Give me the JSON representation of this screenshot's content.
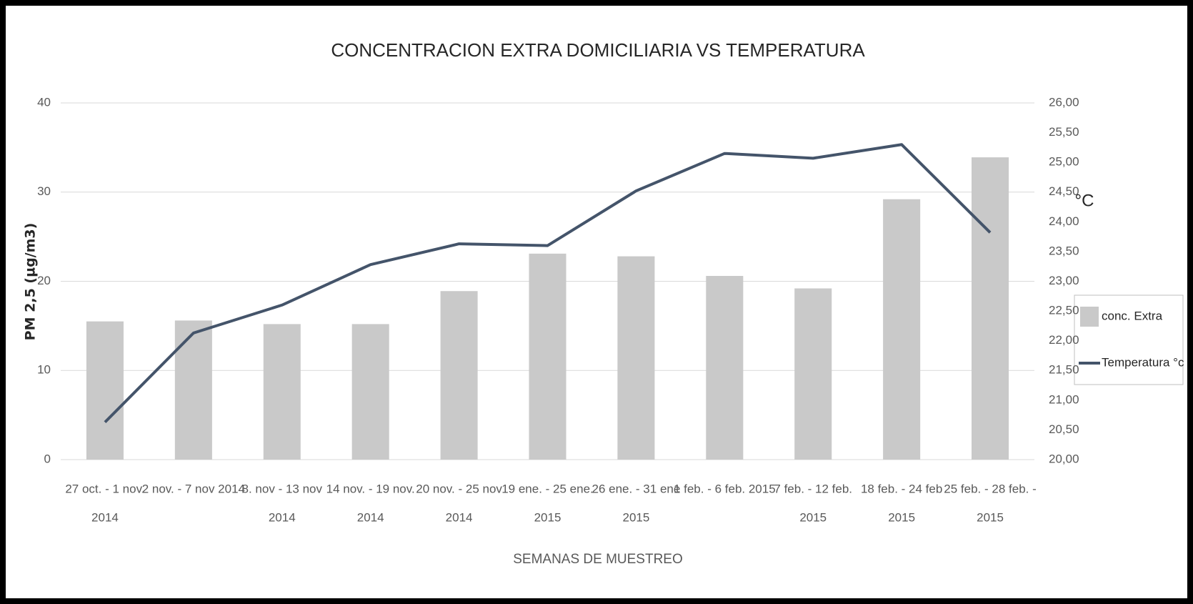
{
  "chart_data": {
    "type": "bar-line",
    "title": "CONCENTRACION EXTRA DOMICILIARIA VS TEMPERATURA",
    "x_label": "SEMANAS DE MUESTREO",
    "y_label": "PM 2,5 (µg/m3)",
    "y2_label": "°C",
    "categories": [
      [
        "27 oct. - 1 nov.",
        "2014"
      ],
      [
        "2 nov. - 7 nov 2014"
      ],
      [
        "8. nov - 13 nov",
        "2014"
      ],
      [
        "14 nov. - 19 nov.",
        "2014"
      ],
      [
        "20 nov. - 25 nov",
        "2014"
      ],
      [
        "19 ene. - 25 ene.",
        "2015"
      ],
      [
        "26 ene. - 31 ene",
        "2015"
      ],
      [
        "1 feb. - 6 feb. 2015"
      ],
      [
        "7 feb. - 12 feb.",
        "2015"
      ],
      [
        "18 feb. - 24 feb",
        "2015"
      ],
      [
        "25 feb. - 28 feb. -",
        "2015"
      ]
    ],
    "series": [
      {
        "name": "conc. Extra",
        "type": "bar",
        "color": "#c9c9c9",
        "axis": "y",
        "values": [
          15.5,
          15.6,
          15.2,
          15.2,
          18.9,
          23.1,
          22.8,
          20.6,
          19.2,
          29.2,
          33.9
        ]
      },
      {
        "name": "Temperatura °c",
        "type": "line",
        "color": "#44546a",
        "axis": "y2",
        "values": [
          20.63,
          22.13,
          22.6,
          23.28,
          23.63,
          23.6,
          24.52,
          25.15,
          25.07,
          25.3,
          23.82
        ]
      }
    ],
    "ylim": [
      0,
      40
    ],
    "yticks": [
      0,
      10,
      20,
      30,
      40
    ],
    "y2lim": [
      20,
      26
    ],
    "y2ticks": [
      {
        "value": 20,
        "label": "20,00"
      },
      {
        "value": 20.5,
        "label": "20,50"
      },
      {
        "value": 21,
        "label": "21,00"
      },
      {
        "value": 21.5,
        "label": "21,50"
      },
      {
        "value": 22,
        "label": "22,00"
      },
      {
        "value": 22.5,
        "label": "22,50"
      },
      {
        "value": 23,
        "label": "23,00"
      },
      {
        "value": 23.5,
        "label": "23,50"
      },
      {
        "value": 24,
        "label": "24,00"
      },
      {
        "value": 24.5,
        "label": "24,50"
      },
      {
        "value": 25,
        "label": "25,00"
      },
      {
        "value": 25.5,
        "label": "25,50"
      },
      {
        "value": 26,
        "label": "26,00"
      }
    ],
    "grid": true,
    "legend": "right"
  }
}
